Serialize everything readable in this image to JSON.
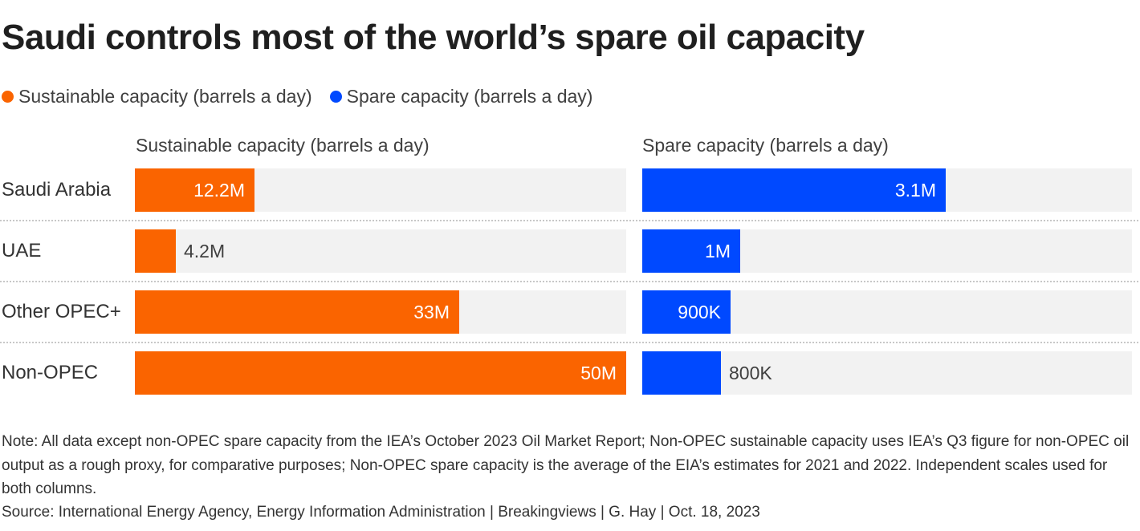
{
  "title": "Saudi controls most of the world’s spare oil capacity",
  "colors": {
    "sustainable": "#fa6400",
    "spare": "#0049ff",
    "track": "#f2f2f2"
  },
  "legend": [
    {
      "label": "Sustainable capacity (barrels a day)",
      "color": "#fa6400"
    },
    {
      "label": "Spare capacity (barrels a day)",
      "color": "#0049ff"
    }
  ],
  "chart_data": {
    "type": "bar",
    "orientation": "horizontal",
    "categories": [
      "Saudi Arabia",
      "UAE",
      "Other OPEC+",
      "Non-OPEC"
    ],
    "series": [
      {
        "name": "Sustainable capacity (barrels a day)",
        "values": [
          12200000,
          4200000,
          33000000,
          50000000
        ],
        "labels": [
          "12.2M",
          "4.2M",
          "33M",
          "50M"
        ],
        "xlim": [
          0,
          50000000
        ],
        "color": "#fa6400"
      },
      {
        "name": "Spare capacity (barrels a day)",
        "values": [
          3100000,
          1000000,
          900000,
          800000
        ],
        "labels": [
          "3.1M",
          "1M",
          "900K",
          "800K"
        ],
        "xlim": [
          0,
          5000000
        ],
        "color": "#0049ff"
      }
    ],
    "legend_position": "top-left",
    "grid": false
  },
  "note": "Note: All data except non-OPEC spare capacity from the IEA’s October 2023 Oil Market Report; Non-OPEC sustainable capacity uses IEA’s Q3 figure for non-OPEC oil output as a rough proxy, for comparative purposes; Non-OPEC spare capacity is the average of the EIA’s estimates for 2021 and 2022. Independent scales used for both columns.",
  "source": "Source: International Energy Agency, Energy Information Administration | Breakingviews | G. Hay | Oct. 18, 2023"
}
